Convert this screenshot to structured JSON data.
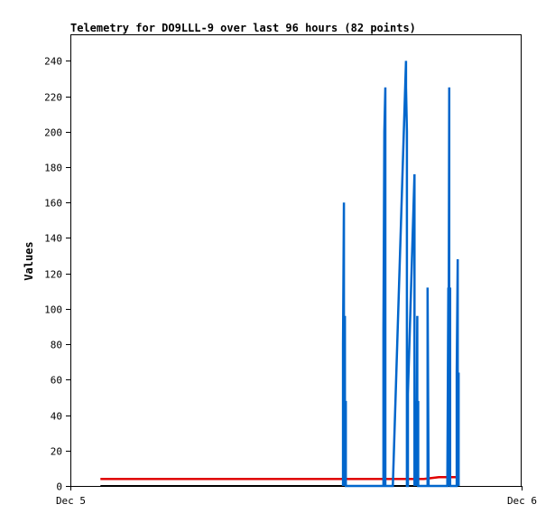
{
  "chart_data": {
    "type": "line",
    "title": "Telemetry for DO9LLL-9 over last 96 hours (82 points)",
    "xlabel": "",
    "ylabel": "Values",
    "x_ticks": [
      "Dec 5",
      "Dec 6"
    ],
    "x_domain_hours": [
      0,
      24
    ],
    "ylim": [
      0,
      255
    ],
    "y_ticks": [
      0,
      20,
      40,
      60,
      80,
      100,
      120,
      140,
      160,
      180,
      200,
      220,
      240
    ],
    "grid": false,
    "legend": "none",
    "series": [
      {
        "color": "#000000",
        "x": [
          1.6,
          20.6
        ],
        "values": [
          0,
          0
        ]
      },
      {
        "color": "#e00000",
        "x": [
          1.6,
          17.5,
          18.8,
          19.6,
          20.6
        ],
        "values": [
          4,
          4,
          4,
          5,
          5
        ]
      },
      {
        "color": "#0066cc",
        "x": [
          14.5,
          14.5,
          14.55,
          14.55,
          14.6,
          14.6,
          14.65,
          14.65,
          14.7,
          14.7,
          14.75,
          14.75,
          14.8,
          16.65,
          16.65,
          16.7,
          16.75,
          16.75,
          16.8,
          16.8,
          17.1,
          17.1,
          17.15,
          17.15,
          17.85,
          17.85,
          17.9,
          17.9,
          17.95,
          17.95,
          18.3,
          18.3,
          18.35,
          18.4,
          18.45,
          18.45,
          18.5,
          18.5,
          18.55,
          18.55,
          18.6,
          18.6,
          19.0,
          19.0,
          19.05,
          19.1,
          20.0,
          20.05,
          20.1,
          20.1,
          20.15,
          20.15,
          20.2,
          20.2,
          20.25,
          20.25,
          20.5,
          20.5,
          20.55,
          20.55,
          20.6,
          20.6,
          20.65,
          20.65
        ],
        "values": [
          0,
          80,
          160,
          0,
          96,
          0,
          48,
          0,
          0,
          0,
          0,
          0,
          0,
          0,
          88,
          200,
          225,
          0,
          0,
          0,
          0,
          0,
          0,
          0,
          240,
          225,
          200,
          0,
          0,
          52,
          176,
          0,
          48,
          0,
          96,
          0,
          48,
          0,
          0,
          0,
          0,
          0,
          0,
          112,
          0,
          0,
          0,
          0,
          112,
          0,
          225,
          0,
          112,
          0,
          0,
          0,
          0,
          0,
          0,
          64,
          128,
          0,
          64,
          0
        ]
      }
    ]
  }
}
